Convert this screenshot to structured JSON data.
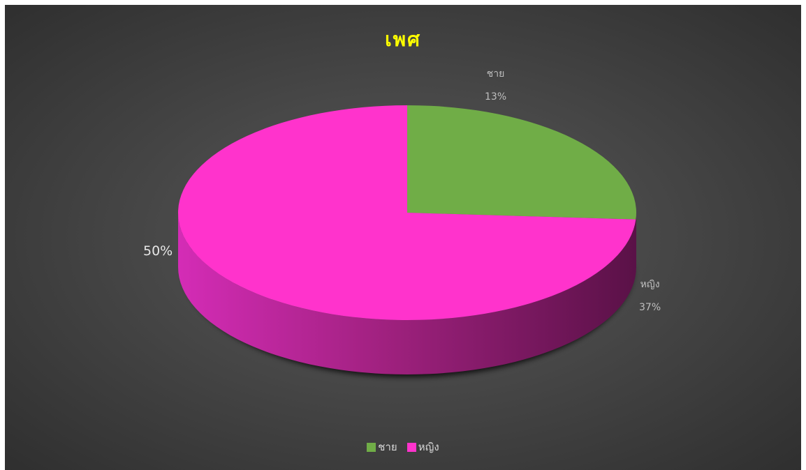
{
  "chart_data": {
    "type": "pie",
    "title": "เพศ",
    "categories": [
      "ชาย",
      "หญิง"
    ],
    "values": [
      13,
      37
    ],
    "value_labels": [
      "13%",
      "37%"
    ],
    "extra_label": "50%",
    "colors": [
      "#70ad47",
      "#ff33cc"
    ],
    "legend_position": "bottom",
    "style": "3d"
  }
}
